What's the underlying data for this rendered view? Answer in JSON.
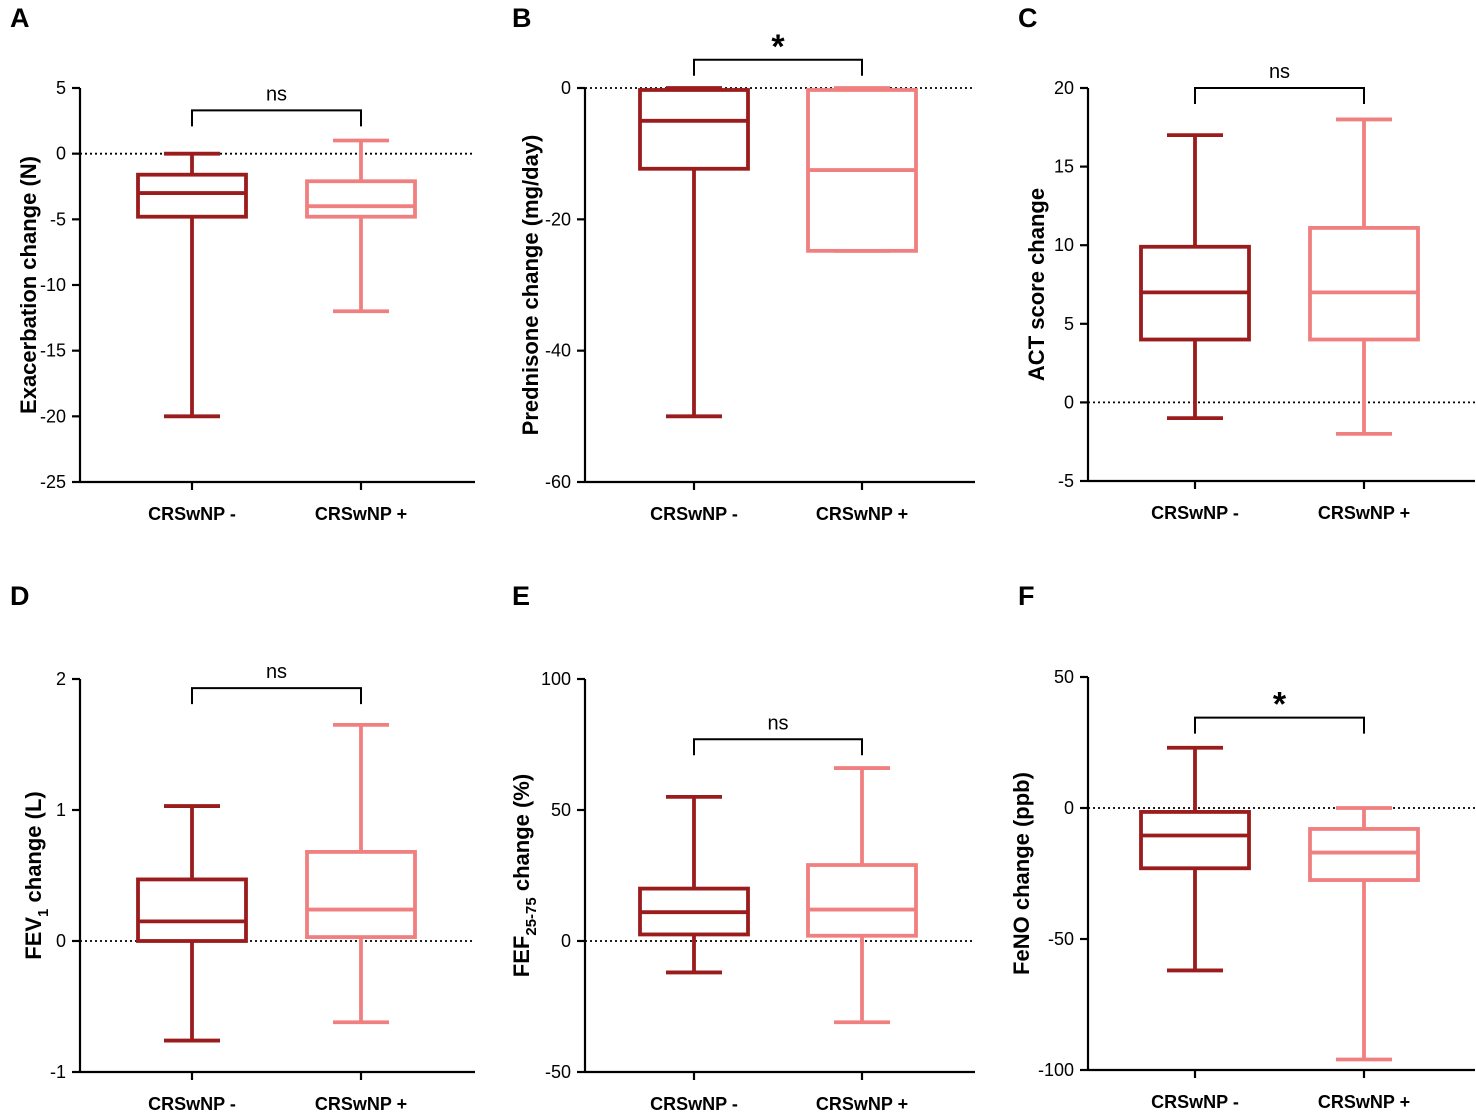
{
  "figure": {
    "colors": {
      "group_neg": "#9b1c1c",
      "group_pos": "#f08080",
      "axis": "#000000"
    },
    "categories": [
      "CRSwNP -",
      "CRSwNP +"
    ]
  },
  "chart_data": [
    {
      "panel": "A",
      "type": "box",
      "ylabel": "Exacerbation change (N)",
      "ylim": [
        -25,
        5
      ],
      "yticks": [
        5,
        0,
        -5,
        -10,
        -15,
        -20,
        -25
      ],
      "reference_line": 0,
      "categories": [
        "CRSwNP -",
        "CRSwNP +"
      ],
      "series": [
        {
          "name": "CRSwNP -",
          "min": -20,
          "q1": -4.8,
          "median": -3,
          "q3": -1.6,
          "max": 0
        },
        {
          "name": "CRSwNP +",
          "min": -12,
          "q1": -4.8,
          "median": -4,
          "q3": -2.1,
          "max": 1
        }
      ],
      "significance": {
        "label": "ns",
        "bracket_y": 3.3
      }
    },
    {
      "panel": "B",
      "type": "box",
      "ylabel": "Prednisone change (mg/day)",
      "ylim": [
        -60,
        0
      ],
      "yticks": [
        0,
        -20,
        -40,
        -60
      ],
      "reference_line": 0,
      "categories": [
        "CRSwNP -",
        "CRSwNP +"
      ],
      "series": [
        {
          "name": "CRSwNP -",
          "min": -50,
          "q1": -12.3,
          "median": -5,
          "q3": -0.3,
          "max": 0
        },
        {
          "name": "CRSwNP +",
          "min": -24.8,
          "q1": -24.8,
          "median": -12.5,
          "q3": -0.3,
          "max": 0
        }
      ],
      "significance": {
        "label": "*",
        "bracket_y": 4.3
      }
    },
    {
      "panel": "C",
      "type": "box",
      "ylabel": "ACT score change",
      "ylim": [
        -5,
        20
      ],
      "yticks": [
        20,
        15,
        10,
        5,
        0,
        -5
      ],
      "reference_line": 0,
      "categories": [
        "CRSwNP -",
        "CRSwNP +"
      ],
      "series": [
        {
          "name": "CRSwNP -",
          "min": -1,
          "q1": 4,
          "median": 7,
          "q3": 9.9,
          "max": 17
        },
        {
          "name": "CRSwNP +",
          "min": -2,
          "q1": 4,
          "median": 7,
          "q3": 11.1,
          "max": 18
        }
      ],
      "significance": {
        "label": "ns",
        "bracket_y": 20
      }
    },
    {
      "panel": "D",
      "type": "box",
      "ylabel_main": "FEV",
      "ylabel_sub": "1",
      "ylabel_rest": " change (L)",
      "ylim": [
        -1,
        2
      ],
      "yticks": [
        2,
        1,
        0,
        -1
      ],
      "reference_line": 0,
      "categories": [
        "CRSwNP -",
        "CRSwNP +"
      ],
      "series": [
        {
          "name": "CRSwNP -",
          "min": -0.76,
          "q1": 0,
          "median": 0.15,
          "q3": 0.47,
          "max": 1.03
        },
        {
          "name": "CRSwNP +",
          "min": -0.62,
          "q1": 0.03,
          "median": 0.24,
          "q3": 0.68,
          "max": 1.65
        }
      ],
      "significance": {
        "label": "ns",
        "bracket_y": 1.93
      }
    },
    {
      "panel": "E",
      "type": "box",
      "ylabel_main": "FEF",
      "ylabel_sub": "25-75",
      "ylabel_rest": " change (%)",
      "ylim": [
        -50,
        100
      ],
      "yticks": [
        100,
        50,
        0,
        -50
      ],
      "reference_line": 0,
      "categories": [
        "CRSwNP -",
        "CRSwNP +"
      ],
      "series": [
        {
          "name": "CRSwNP -",
          "min": -12,
          "q1": 2.5,
          "median": 11,
          "q3": 20,
          "max": 55
        },
        {
          "name": "CRSwNP +",
          "min": -31,
          "q1": 2,
          "median": 12,
          "q3": 29,
          "max": 66
        }
      ],
      "significance": {
        "label": "ns",
        "bracket_y": 77
      }
    },
    {
      "panel": "F",
      "type": "box",
      "ylabel": "FeNO change (ppb)",
      "ylim": [
        -100,
        50
      ],
      "yticks": [
        50,
        0,
        -50,
        -100
      ],
      "reference_line": 0,
      "categories": [
        "CRSwNP -",
        "CRSwNP +"
      ],
      "series": [
        {
          "name": "CRSwNP -",
          "min": -62,
          "q1": -23,
          "median": -10.5,
          "q3": -1.5,
          "max": 23
        },
        {
          "name": "CRSwNP +",
          "min": -96,
          "q1": -27.5,
          "median": -17,
          "q3": -8,
          "max": 0
        }
      ],
      "significance": {
        "label": "*",
        "bracket_y": 34.5
      }
    }
  ]
}
